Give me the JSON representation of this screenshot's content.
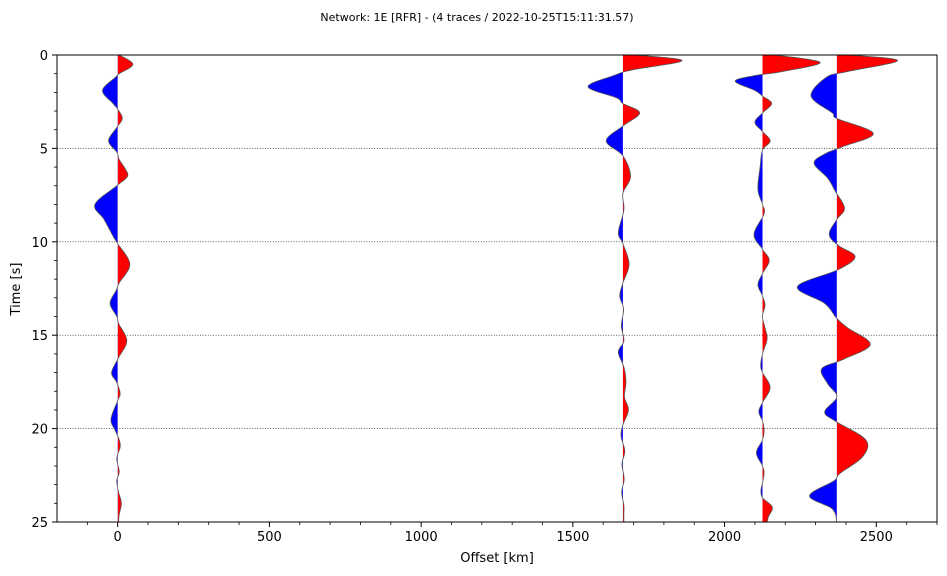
{
  "chart_data": {
    "type": "area",
    "title": "Network: 1E [RFR] - (4 traces / 2022-10-25T15:11:31.57)",
    "xlabel": "Offset [km]",
    "ylabel": "Time [s]",
    "xlim": [
      -200,
      2700
    ],
    "ylim": [
      25,
      0
    ],
    "y_inverted": true,
    "xticks": [
      0,
      500,
      1000,
      1500,
      2000,
      2500
    ],
    "yticks": [
      0,
      5,
      10,
      15,
      20,
      25
    ],
    "grid": "horizontal dotted at major y ticks",
    "positive_fill_color": "#ff0000",
    "negative_fill_color": "#0000ff",
    "trace_line_color": "#555555",
    "traces": [
      {
        "offset": 0,
        "samples": [
          {
            "t": 0,
            "a": 5
          },
          {
            "t": 0.5,
            "a": 50
          },
          {
            "t": 1,
            "a": 5
          },
          {
            "t": 1.2,
            "a": -8
          },
          {
            "t": 1.9,
            "a": -50
          },
          {
            "t": 2.6,
            "a": -15
          },
          {
            "t": 2.9,
            "a": 0
          },
          {
            "t": 3.4,
            "a": 15
          },
          {
            "t": 3.9,
            "a": -4
          },
          {
            "t": 4.6,
            "a": -30
          },
          {
            "t": 5.2,
            "a": -3
          },
          {
            "t": 5.6,
            "a": 5
          },
          {
            "t": 6.1,
            "a": 25
          },
          {
            "t": 6.5,
            "a": 32
          },
          {
            "t": 7.0,
            "a": -3
          },
          {
            "t": 8.0,
            "a": -75
          },
          {
            "t": 8.8,
            "a": -45
          },
          {
            "t": 9.7,
            "a": -15
          },
          {
            "t": 10.1,
            "a": 0
          },
          {
            "t": 11.2,
            "a": 40
          },
          {
            "t": 12.2,
            "a": 5
          },
          {
            "t": 12.6,
            "a": -5
          },
          {
            "t": 13.3,
            "a": -25
          },
          {
            "t": 14.0,
            "a": -3
          },
          {
            "t": 14.4,
            "a": 4
          },
          {
            "t": 15.3,
            "a": 30
          },
          {
            "t": 16.2,
            "a": 3
          },
          {
            "t": 17.0,
            "a": -20
          },
          {
            "t": 17.5,
            "a": -4
          },
          {
            "t": 18.1,
            "a": 8
          },
          {
            "t": 18.5,
            "a": 0
          },
          {
            "t": 19.5,
            "a": -22
          },
          {
            "t": 20.1,
            "a": -8
          },
          {
            "t": 20.6,
            "a": 5
          },
          {
            "t": 21.0,
            "a": 8
          },
          {
            "t": 21.6,
            "a": -3
          },
          {
            "t": 22.3,
            "a": 5
          },
          {
            "t": 22.8,
            "a": -3
          },
          {
            "t": 23.4,
            "a": 3
          },
          {
            "t": 24.0,
            "a": 12
          },
          {
            "t": 24.6,
            "a": 5
          },
          {
            "t": 25,
            "a": 3
          }
        ]
      },
      {
        "offset": 1665,
        "samples": [
          {
            "t": 0,
            "a": 40
          },
          {
            "t": 0.3,
            "a": 195
          },
          {
            "t": 0.8,
            "a": 30
          },
          {
            "t": 1.1,
            "a": -30
          },
          {
            "t": 1.7,
            "a": -115
          },
          {
            "t": 2.3,
            "a": -20
          },
          {
            "t": 2.6,
            "a": 0
          },
          {
            "t": 3.1,
            "a": 55
          },
          {
            "t": 3.8,
            "a": 0
          },
          {
            "t": 4.6,
            "a": -55
          },
          {
            "t": 5.4,
            "a": 0
          },
          {
            "t": 6.5,
            "a": 25
          },
          {
            "t": 7.4,
            "a": 0
          },
          {
            "t": 8.3,
            "a": 3
          },
          {
            "t": 9.5,
            "a": -15
          },
          {
            "t": 10.1,
            "a": 0
          },
          {
            "t": 11.2,
            "a": 20
          },
          {
            "t": 12.2,
            "a": 0
          },
          {
            "t": 12.9,
            "a": -10
          },
          {
            "t": 13.6,
            "a": 2
          },
          {
            "t": 14.5,
            "a": -5
          },
          {
            "t": 15.3,
            "a": 3
          },
          {
            "t": 15.9,
            "a": -15
          },
          {
            "t": 16.7,
            "a": 3
          },
          {
            "t": 17.5,
            "a": 10
          },
          {
            "t": 18.3,
            "a": 5
          },
          {
            "t": 19.0,
            "a": 18
          },
          {
            "t": 19.8,
            "a": 0
          },
          {
            "t": 20.4,
            "a": -6
          },
          {
            "t": 21.2,
            "a": 6
          },
          {
            "t": 21.9,
            "a": -3
          },
          {
            "t": 22.7,
            "a": 4
          },
          {
            "t": 23.4,
            "a": -4
          },
          {
            "t": 24.1,
            "a": 3
          },
          {
            "t": 24.6,
            "a": 3
          },
          {
            "t": 25,
            "a": 3
          }
        ]
      },
      {
        "offset": 2125,
        "samples": [
          {
            "t": 0,
            "a": 40
          },
          {
            "t": 0.4,
            "a": 190
          },
          {
            "t": 0.9,
            "a": 60
          },
          {
            "t": 1.1,
            "a": -25
          },
          {
            "t": 1.4,
            "a": -90
          },
          {
            "t": 1.9,
            "a": -25
          },
          {
            "t": 2.2,
            "a": 0
          },
          {
            "t": 2.6,
            "a": 30
          },
          {
            "t": 3.1,
            "a": 0
          },
          {
            "t": 3.6,
            "a": -25
          },
          {
            "t": 4.1,
            "a": 0
          },
          {
            "t": 4.6,
            "a": 25
          },
          {
            "t": 5.1,
            "a": 0
          },
          {
            "t": 6.0,
            "a": -8
          },
          {
            "t": 7.2,
            "a": -15
          },
          {
            "t": 8.0,
            "a": 0
          },
          {
            "t": 8.5,
            "a": 5
          },
          {
            "t": 9.6,
            "a": -28
          },
          {
            "t": 10.4,
            "a": 0
          },
          {
            "t": 11.0,
            "a": 22
          },
          {
            "t": 11.7,
            "a": 0
          },
          {
            "t": 12.3,
            "a": -15
          },
          {
            "t": 12.9,
            "a": 0
          },
          {
            "t": 13.4,
            "a": 8
          },
          {
            "t": 14.0,
            "a": 0
          },
          {
            "t": 14.6,
            "a": 8
          },
          {
            "t": 15.2,
            "a": 15
          },
          {
            "t": 16.0,
            "a": 0
          },
          {
            "t": 16.6,
            "a": -6
          },
          {
            "t": 17.0,
            "a": 0
          },
          {
            "t": 17.8,
            "a": 25
          },
          {
            "t": 18.6,
            "a": 0
          },
          {
            "t": 19.1,
            "a": -12
          },
          {
            "t": 19.6,
            "a": 0
          },
          {
            "t": 20.1,
            "a": 5
          },
          {
            "t": 20.6,
            "a": 0
          },
          {
            "t": 21.3,
            "a": -20
          },
          {
            "t": 22.0,
            "a": 0
          },
          {
            "t": 22.4,
            "a": 5
          },
          {
            "t": 22.9,
            "a": 0
          },
          {
            "t": 23.3,
            "a": -5
          },
          {
            "t": 23.7,
            "a": 0
          },
          {
            "t": 24.2,
            "a": 32
          },
          {
            "t": 24.7,
            "a": 20
          },
          {
            "t": 25,
            "a": 15
          }
        ]
      },
      {
        "offset": 2370,
        "samples": [
          {
            "t": 0,
            "a": 40
          },
          {
            "t": 0.3,
            "a": 200
          },
          {
            "t": 0.9,
            "a": 30
          },
          {
            "t": 1.2,
            "a": -35
          },
          {
            "t": 2.2,
            "a": -85
          },
          {
            "t": 3.1,
            "a": -15
          },
          {
            "t": 3.4,
            "a": 0
          },
          {
            "t": 4.2,
            "a": 120
          },
          {
            "t": 4.9,
            "a": 20
          },
          {
            "t": 5.3,
            "a": -40
          },
          {
            "t": 5.8,
            "a": -75
          },
          {
            "t": 6.6,
            "a": -30
          },
          {
            "t": 7.3,
            "a": -5
          },
          {
            "t": 8.2,
            "a": 25
          },
          {
            "t": 8.8,
            "a": 0
          },
          {
            "t": 9.6,
            "a": -25
          },
          {
            "t": 10.2,
            "a": 5
          },
          {
            "t": 10.8,
            "a": 60
          },
          {
            "t": 11.5,
            "a": 3
          },
          {
            "t": 12.4,
            "a": -130
          },
          {
            "t": 13.3,
            "a": -40
          },
          {
            "t": 14.1,
            "a": 0
          },
          {
            "t": 14.6,
            "a": 35
          },
          {
            "t": 15.5,
            "a": 110
          },
          {
            "t": 16.3,
            "a": 20
          },
          {
            "t": 16.8,
            "a": -50
          },
          {
            "t": 17.6,
            "a": -30
          },
          {
            "t": 18.3,
            "a": 0
          },
          {
            "t": 19.1,
            "a": -40
          },
          {
            "t": 19.6,
            "a": -5
          },
          {
            "t": 20.6,
            "a": 95
          },
          {
            "t": 21.5,
            "a": 85
          },
          {
            "t": 22.4,
            "a": 10
          },
          {
            "t": 22.8,
            "a": -10
          },
          {
            "t": 23.6,
            "a": -90
          },
          {
            "t": 24.3,
            "a": -15
          },
          {
            "t": 25,
            "a": 0
          }
        ]
      }
    ]
  }
}
